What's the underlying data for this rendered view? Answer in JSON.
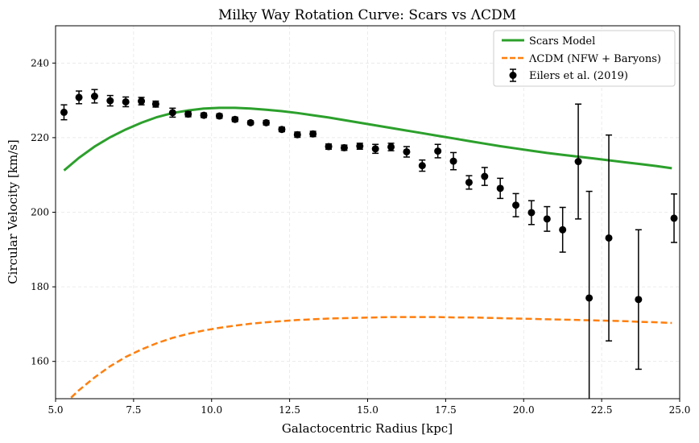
{
  "chart_data": {
    "type": "line",
    "title": "Milky Way Rotation Curve: Scars vs ΛCDM",
    "xlabel": "Galactocentric Radius [kpc]",
    "ylabel": "Circular Velocity [km/s]",
    "xlim": [
      5.0,
      25.0
    ],
    "ylim": [
      150,
      250
    ],
    "xticks": [
      5.0,
      7.5,
      10.0,
      12.5,
      15.0,
      17.5,
      20.0,
      22.5,
      25.0
    ],
    "xtick_labels": [
      "5.0",
      "7.5",
      "10.0",
      "12.5",
      "15.0",
      "17.5",
      "20.0",
      "22.5",
      "25.0"
    ],
    "yticks": [
      160,
      180,
      200,
      220,
      240
    ],
    "ytick_labels": [
      "160",
      "180",
      "200",
      "220",
      "240"
    ],
    "grid": true,
    "legend_position": "top-right",
    "series": [
      {
        "name": "Scars Model",
        "kind": "line",
        "color": "#2ca02c",
        "style": "solid",
        "x": [
          5.27,
          5.75,
          6.25,
          6.75,
          7.25,
          7.75,
          8.25,
          8.75,
          9.25,
          9.75,
          10.25,
          10.75,
          11.25,
          11.75,
          12.25,
          12.75,
          13.25,
          13.75,
          14.25,
          14.75,
          15.25,
          15.75,
          16.25,
          16.75,
          17.25,
          17.75,
          18.25,
          18.75,
          19.25,
          19.75,
          20.25,
          20.75,
          21.25,
          21.75,
          22.25,
          22.75,
          23.25,
          23.75,
          24.25,
          24.75
        ],
        "y": [
          211.2,
          214.6,
          217.6,
          220.1,
          222.2,
          224.0,
          225.5,
          226.6,
          227.3,
          227.8,
          228.0,
          228.0,
          227.8,
          227.5,
          227.1,
          226.6,
          226.0,
          225.4,
          224.7,
          224.0,
          223.3,
          222.6,
          221.9,
          221.2,
          220.5,
          219.8,
          219.1,
          218.4,
          217.7,
          217.1,
          216.5,
          215.9,
          215.4,
          214.9,
          214.4,
          213.9,
          213.4,
          212.9,
          212.4,
          211.8
        ]
      },
      {
        "name": "ΛCDM (NFW + Baryons)",
        "kind": "line",
        "color": "#ff7f0e",
        "style": "dashed",
        "x": [
          5.27,
          5.75,
          6.25,
          6.75,
          7.25,
          7.75,
          8.25,
          8.75,
          9.25,
          9.75,
          10.25,
          10.75,
          11.25,
          11.75,
          12.25,
          12.75,
          13.25,
          13.75,
          14.25,
          14.75,
          15.25,
          15.75,
          16.25,
          16.75,
          17.25,
          17.75,
          18.25,
          18.75,
          19.25,
          19.75,
          20.25,
          20.75,
          21.25,
          21.75,
          22.25,
          22.75,
          23.25,
          23.75,
          24.25,
          24.75
        ],
        "y": [
          148.5,
          152.3,
          155.7,
          158.7,
          161.2,
          163.2,
          164.9,
          166.3,
          167.4,
          168.3,
          169.0,
          169.6,
          170.1,
          170.5,
          170.8,
          171.1,
          171.3,
          171.5,
          171.6,
          171.7,
          171.8,
          171.9,
          171.9,
          171.9,
          171.9,
          171.8,
          171.8,
          171.7,
          171.6,
          171.5,
          171.4,
          171.3,
          171.2,
          171.1,
          171.0,
          170.9,
          170.8,
          170.6,
          170.5,
          170.3
        ]
      }
    ],
    "observations": {
      "name": "Eilers et al. (2019)",
      "kind": "errorbar",
      "color": "#000000",
      "points": [
        {
          "x": 5.27,
          "y": 226.8,
          "err": 2.0
        },
        {
          "x": 5.75,
          "y": 230.8,
          "err": 1.7
        },
        {
          "x": 6.25,
          "y": 231.1,
          "err": 1.8
        },
        {
          "x": 6.75,
          "y": 229.9,
          "err": 1.4
        },
        {
          "x": 7.25,
          "y": 229.6,
          "err": 1.3
        },
        {
          "x": 7.75,
          "y": 229.8,
          "err": 1.0
        },
        {
          "x": 8.21,
          "y": 229.0,
          "err": 0.8
        },
        {
          "x": 8.75,
          "y": 226.7,
          "err": 1.2
        },
        {
          "x": 9.25,
          "y": 226.3,
          "err": 0.7
        },
        {
          "x": 9.75,
          "y": 226.0,
          "err": 0.6
        },
        {
          "x": 10.25,
          "y": 225.8,
          "err": 0.6
        },
        {
          "x": 10.75,
          "y": 224.9,
          "err": 0.6
        },
        {
          "x": 11.25,
          "y": 224.0,
          "err": 0.5
        },
        {
          "x": 11.75,
          "y": 224.0,
          "err": 0.6
        },
        {
          "x": 12.25,
          "y": 222.2,
          "err": 0.6
        },
        {
          "x": 12.75,
          "y": 220.8,
          "err": 0.7
        },
        {
          "x": 13.25,
          "y": 221.0,
          "err": 0.7
        },
        {
          "x": 13.75,
          "y": 217.6,
          "err": 0.7
        },
        {
          "x": 14.25,
          "y": 217.3,
          "err": 0.7
        },
        {
          "x": 14.75,
          "y": 217.7,
          "err": 0.8
        },
        {
          "x": 15.25,
          "y": 217.0,
          "err": 1.2
        },
        {
          "x": 15.75,
          "y": 217.5,
          "err": 1.0
        },
        {
          "x": 16.25,
          "y": 216.2,
          "err": 1.4
        },
        {
          "x": 16.75,
          "y": 212.5,
          "err": 1.5
        },
        {
          "x": 17.25,
          "y": 216.4,
          "err": 1.8
        },
        {
          "x": 17.75,
          "y": 213.7,
          "err": 2.3
        },
        {
          "x": 18.25,
          "y": 208.0,
          "err": 1.8
        },
        {
          "x": 18.75,
          "y": 209.6,
          "err": 2.4
        },
        {
          "x": 19.25,
          "y": 206.4,
          "err": 2.7
        },
        {
          "x": 19.75,
          "y": 201.9,
          "err": 3.1
        },
        {
          "x": 20.25,
          "y": 199.9,
          "err": 3.2
        },
        {
          "x": 20.75,
          "y": 198.2,
          "err": 3.3
        },
        {
          "x": 21.25,
          "y": 195.3,
          "err": 6.0
        },
        {
          "x": 21.75,
          "y": 213.6,
          "err": 15.4
        },
        {
          "x": 22.1,
          "y": 177.0,
          "err": 28.6
        },
        {
          "x": 22.73,
          "y": 193.1,
          "err": 27.6
        },
        {
          "x": 23.68,
          "y": 176.6,
          "err": 18.7
        },
        {
          "x": 24.82,
          "y": 198.4,
          "err": 6.5
        }
      ]
    }
  }
}
